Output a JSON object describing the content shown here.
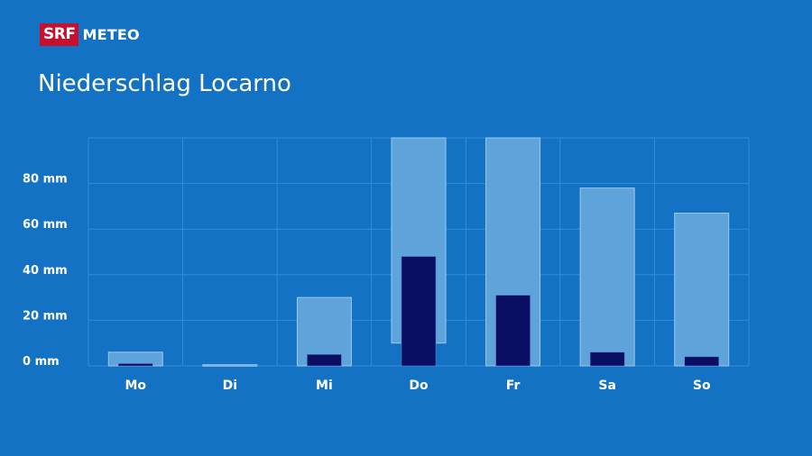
{
  "brand": {
    "srf": "SRF",
    "meteo": "METEO",
    "srf_color": "#c8102e"
  },
  "title": "Niederschlag Locarno",
  "chart_data": {
    "type": "bar",
    "title": "Niederschlag Locarno",
    "unit": "mm",
    "categories": [
      "Mo",
      "Di",
      "Mi",
      "Do",
      "Fr",
      "Sa",
      "So"
    ],
    "yticks": [
      0,
      20,
      40,
      60,
      80
    ],
    "ytick_labels": [
      "0 mm",
      "20 mm",
      "40 mm",
      "60 mm",
      "80 mm"
    ],
    "ylim": [
      0,
      100
    ],
    "grid": true,
    "range": [
      {
        "low": 0,
        "high": 6
      },
      {
        "low": 0,
        "high": 0.5
      },
      {
        "low": 0,
        "high": 30
      },
      {
        "low": 10,
        "high": 100
      },
      {
        "low": 0,
        "high": 100
      },
      {
        "low": 0,
        "high": 78
      },
      {
        "low": 0,
        "high": 67
      }
    ],
    "values": [
      1,
      0,
      5,
      48,
      31,
      6,
      4
    ],
    "colors": {
      "range": "#5fa3db",
      "range_stroke": "#9cc8ec",
      "value": "#0a0f63",
      "grid": "#3a8ad4"
    }
  }
}
